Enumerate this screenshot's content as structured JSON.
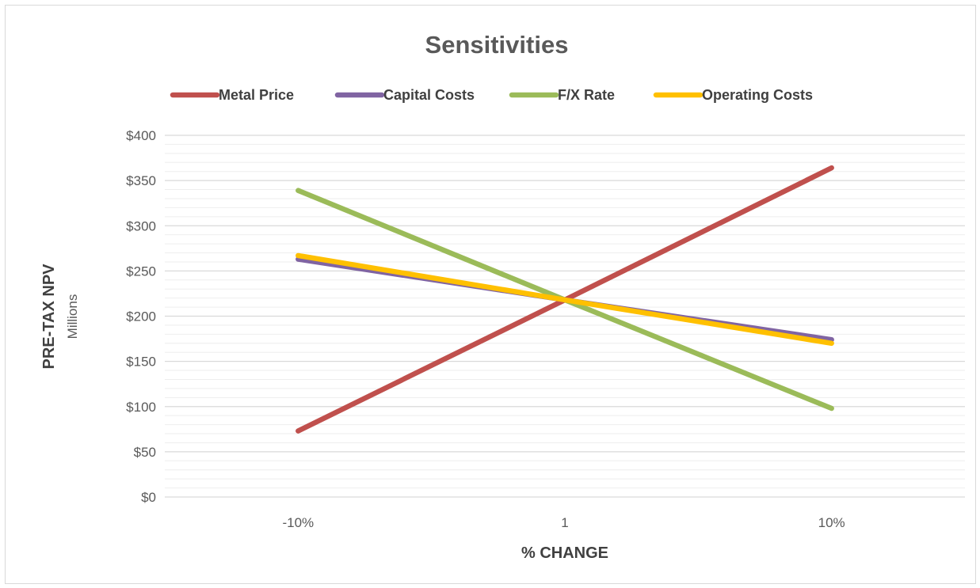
{
  "chart_data": {
    "type": "line",
    "title": "Sensitivities",
    "xlabel": "% CHANGE",
    "ylabel": "PRE-TAX NPV",
    "ylabel_sub": "Millions",
    "categories": [
      "-10%",
      "1",
      "10%"
    ],
    "ylim": [
      0,
      400
    ],
    "y_major_step": 50,
    "y_minor_step": 10,
    "y_ticks": [
      "$0",
      "$50",
      "$100",
      "$150",
      "$200",
      "$250",
      "$300",
      "$350",
      "$400"
    ],
    "grid": true,
    "legend_position": "top",
    "series": [
      {
        "name": "Metal Price",
        "color": "#c0504d",
        "values": [
          73,
          218,
          364
        ]
      },
      {
        "name": "Capital Costs",
        "color": "#8064a2",
        "values": [
          263,
          218,
          174
        ]
      },
      {
        "name": "F/X Rate",
        "color": "#9bbb59",
        "values": [
          339,
          218,
          98
        ]
      },
      {
        "name": "Operating Costs",
        "color": "#ffc000",
        "values": [
          267,
          218,
          170
        ]
      }
    ]
  }
}
